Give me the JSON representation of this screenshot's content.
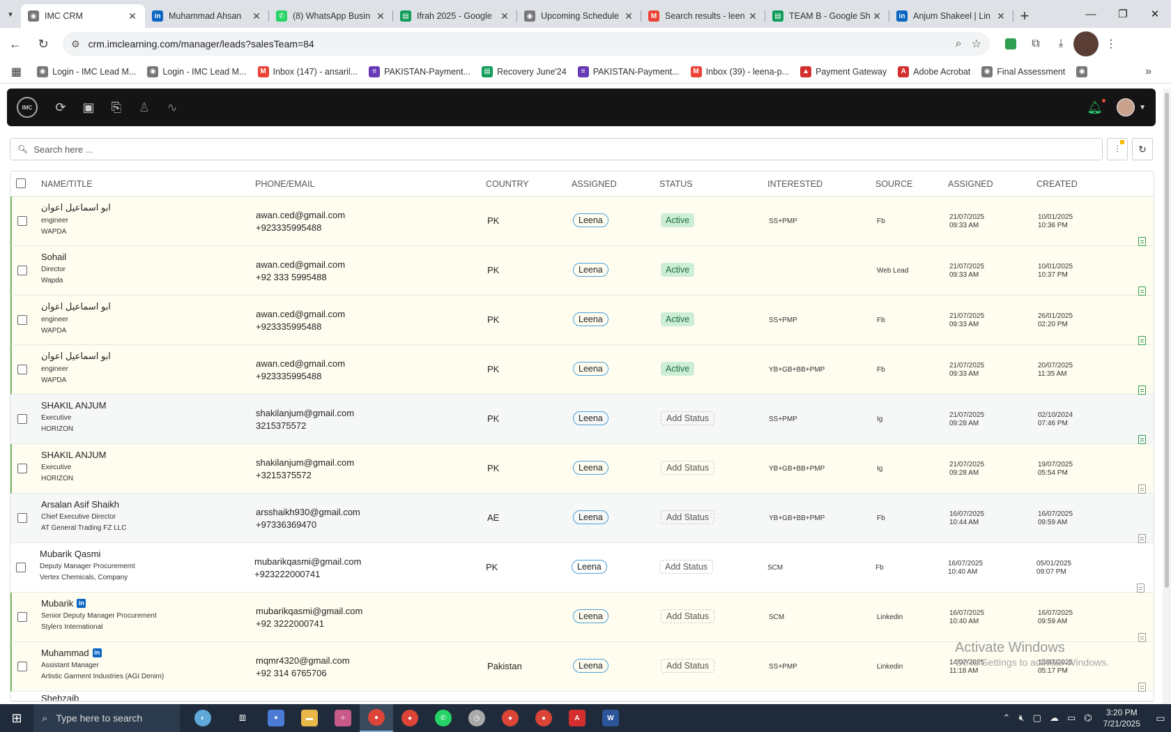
{
  "browser": {
    "tabs": [
      {
        "title": "IMC CRM",
        "icon": "imc-logo-icon",
        "fav_color": "#777777",
        "active": true
      },
      {
        "title": "Muhammad Ahsan",
        "icon": "linkedin-icon",
        "fav_color": "#0a66c2",
        "active": false
      },
      {
        "title": "(8) WhatsApp Busin",
        "icon": "whatsapp-icon",
        "fav_color": "#25d366",
        "active": false
      },
      {
        "title": "Ifrah 2025 - Google",
        "icon": "sheets-icon",
        "fav_color": "#0f9d58",
        "active": false
      },
      {
        "title": "Upcoming Schedule",
        "icon": "imc-logo-icon",
        "fav_color": "#777777",
        "active": false
      },
      {
        "title": "Search results - leen",
        "icon": "gmail-icon",
        "fav_color": "#ea4335",
        "active": false
      },
      {
        "title": "TEAM B - Google Sh",
        "icon": "sheets-icon",
        "fav_color": "#0f9d58",
        "active": false
      },
      {
        "title": "Anjum Shakeel | Lin",
        "icon": "linkedin-icon",
        "fav_color": "#0a66c2",
        "active": false
      }
    ],
    "url": "crm.imclearning.com/manager/leads?salesTeam=84",
    "bookmarks": [
      {
        "label": "Login - IMC Lead M...",
        "icon": "imc-logo-icon",
        "color": "#777777"
      },
      {
        "label": "Login - IMC Lead M...",
        "icon": "imc-logo-icon",
        "color": "#777777"
      },
      {
        "label": "Inbox (147) - ansaril...",
        "icon": "gmail-icon",
        "color": "#ea4335"
      },
      {
        "label": "PAKISTAN-Payment...",
        "icon": "forms-icon",
        "color": "#673ab7"
      },
      {
        "label": "Recovery June'24",
        "icon": "sheets-icon",
        "color": "#0f9d58"
      },
      {
        "label": "PAKISTAN-Payment...",
        "icon": "forms-icon",
        "color": "#673ab7"
      },
      {
        "label": "Inbox (39) - leena-p...",
        "icon": "gmail-icon",
        "color": "#ea4335"
      },
      {
        "label": "Payment Gateway",
        "icon": "payment-icon",
        "color": "#d32f2f"
      },
      {
        "label": "Adobe Acrobat",
        "icon": "acrobat-icon",
        "color": "#d32f2f"
      },
      {
        "label": "Final Assessment",
        "icon": "imc-logo-icon",
        "color": "#777777"
      }
    ]
  },
  "app": {
    "logo_text": "IMC",
    "search_placeholder": "Search here ..."
  },
  "table": {
    "headers": {
      "name": "NAME/TITLE",
      "contact": "PHONE/EMAIL",
      "country": "COUNTRY",
      "assigned_to": "ASSIGNED",
      "status": "STATUS",
      "interested": "INTERESTED",
      "source": "SOURCE",
      "assigned_at": "ASSIGNED",
      "created": "CREATED"
    },
    "rows": [
      {
        "name": "ابو اسماعیل اعوان",
        "title": "engineer",
        "company": "WAPDA",
        "email": "awan.ced@gmail.com",
        "phone": "+923335995488",
        "country": "PK",
        "assignee": "Leena",
        "status": "Active",
        "interested": "SS+PMP",
        "source": "Fb",
        "assigned_date": "21/07/2025",
        "assigned_time": "09:33 AM",
        "created_date": "10/01/2025",
        "created_time": "10:36 PM",
        "style": "yellow",
        "linkedin": false,
        "doc_green": true
      },
      {
        "name": "Sohail",
        "title": "Director",
        "company": "Wapda",
        "email": "awan.ced@gmail.com",
        "phone": "+92 333 5995488",
        "country": "PK",
        "assignee": "Leena",
        "status": "Active",
        "interested": "",
        "source": "Web Lead",
        "assigned_date": "21/07/2025",
        "assigned_time": "09:33 AM",
        "created_date": "10/01/2025",
        "created_time": "10:37 PM",
        "style": "yellow",
        "linkedin": false,
        "doc_green": true
      },
      {
        "name": "ابو اسماعیل اعوان",
        "title": "engineer",
        "company": "WAPDA",
        "email": "awan.ced@gmail.com",
        "phone": "+923335995488",
        "country": "PK",
        "assignee": "Leena",
        "status": "Active",
        "interested": "SS+PMP",
        "source": "Fb",
        "assigned_date": "21/07/2025",
        "assigned_time": "09:33 AM",
        "created_date": "26/01/2025",
        "created_time": "02:20 PM",
        "style": "yellow",
        "linkedin": false,
        "doc_green": true
      },
      {
        "name": "ابو اسماعیل اعوان",
        "title": "engineer",
        "company": "WAPDA",
        "email": "awan.ced@gmail.com",
        "phone": "+923335995488",
        "country": "PK",
        "assignee": "Leena",
        "status": "Active",
        "interested": "YB+GB+BB+PMP",
        "source": "Fb",
        "assigned_date": "21/07/2025",
        "assigned_time": "09:33 AM",
        "created_date": "20/07/2025",
        "created_time": "11:35 AM",
        "style": "yellow",
        "linkedin": false,
        "doc_green": true
      },
      {
        "name": "SHAKIL ANJUM",
        "title": "Executive",
        "company": "HORIZON",
        "email": "shakilanjum@gmail.com",
        "phone": "3215375572",
        "country": "PK",
        "assignee": "Leena",
        "status": "Add Status",
        "interested": "SS+PMP",
        "source": "Ig",
        "assigned_date": "21/07/2025",
        "assigned_time": "09:28 AM",
        "created_date": "02/10/2024",
        "created_time": "07:46 PM",
        "style": "grey",
        "linkedin": false,
        "doc_green": true
      },
      {
        "name": "SHAKIL ANJUM",
        "title": "Executive",
        "company": "HORIZON",
        "email": "shakilanjum@gmail.com",
        "phone": "+3215375572",
        "country": "PK",
        "assignee": "Leena",
        "status": "Add Status",
        "interested": "YB+GB+BB+PMP",
        "source": "Ig",
        "assigned_date": "21/07/2025",
        "assigned_time": "09:28 AM",
        "created_date": "19/07/2025",
        "created_time": "05:54 PM",
        "style": "yellow",
        "linkedin": false,
        "doc_green": false
      },
      {
        "name": "Arsalan Asif Shaikh",
        "title": "Chief Executive Director",
        "company": "AT General Trading FZ LLC",
        "email": "arsshaikh930@gmail.com",
        "phone": "+97336369470",
        "country": "AE",
        "assignee": "Leena",
        "status": "Add Status",
        "interested": "YB+GB+BB+PMP",
        "source": "Fb",
        "assigned_date": "16/07/2025",
        "assigned_time": "10:44 AM",
        "created_date": "16/07/2025",
        "created_time": "09:59 AM",
        "style": "grey",
        "linkedin": false,
        "doc_green": false
      },
      {
        "name": "Mubarik Qasmi",
        "title": "Deputy Manager Procurememt",
        "company": "Vertex Chemicals, Company",
        "email": "mubarikqasmi@gmail.com",
        "phone": "+923222000741",
        "country": "PK",
        "assignee": "Leena",
        "status": "Add Status",
        "interested": "SCM",
        "source": "Fb",
        "assigned_date": "16/07/2025",
        "assigned_time": "10:40 AM",
        "created_date": "05/01/2025",
        "created_time": "09:07 PM",
        "style": "white",
        "linkedin": false,
        "doc_green": false
      },
      {
        "name": "Mubarik",
        "title": "Senior Deputy Manager Procurement",
        "company": "Stylers International",
        "email": "mubarikqasmi@gmail.com",
        "phone": "+92 3222000741",
        "country": "",
        "assignee": "Leena",
        "status": "Add Status",
        "interested": "SCM",
        "source": "Linkedin",
        "assigned_date": "16/07/2025",
        "assigned_time": "10:40 AM",
        "created_date": "16/07/2025",
        "created_time": "09:59 AM",
        "style": "yellow",
        "linkedin": true,
        "doc_green": false
      },
      {
        "name": "Muhammad",
        "title": "Assistant Manager",
        "company": "Artistic Garment Industries (AGI Denim)",
        "email": "mqmr4320@gmail.com",
        "phone": "+92 314 6765706",
        "country": "Pakistan",
        "assignee": "Leena",
        "status": "Add Status",
        "interested": "SS+PMP",
        "source": "Linkedin",
        "assigned_date": "14/07/2025",
        "assigned_time": "11:18 AM",
        "created_date": "13/07/2025",
        "created_time": "05:17 PM",
        "style": "yellow",
        "linkedin": true,
        "doc_green": false
      }
    ],
    "partial_row_name": "Shehzaib"
  },
  "watermark": {
    "line1": "Activate Windows",
    "line2": "Go to Settings to activate Windows."
  },
  "taskbar": {
    "search_placeholder": "Type here to search",
    "time": "3:20 PM",
    "date": "7/21/2025"
  }
}
